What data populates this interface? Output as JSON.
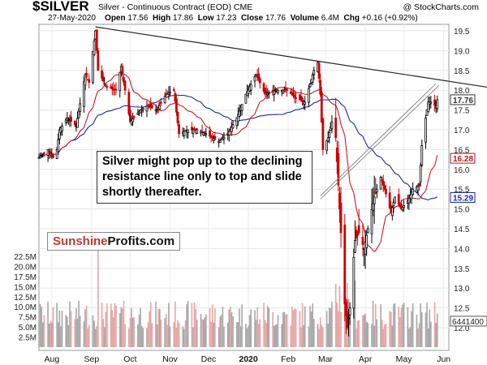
{
  "header": {
    "symbol": "$SILVER",
    "contract": "Silver - Continuous Contract (EOD) CME",
    "copyright": "@ StockCharts.com",
    "date": "27-May-2020",
    "open_label": "Open",
    "open": "17.56",
    "high_label": "High",
    "high": "17.86",
    "low_label": "Low",
    "low": "17.23",
    "close_label": "Close",
    "close": "17.76",
    "volume_label": "Volume",
    "volume": "6.4M",
    "chg_label": "Chg",
    "chg": "+0.16 (+0.92%)"
  },
  "annotation": "Silver might pop up to the declining resistance line only to top and slide shortly thereafter.",
  "watermark": {
    "part1": "Sunshine",
    "part2": "Profits.com"
  },
  "colors": {
    "up": "#000000",
    "down": "#cc0000",
    "ma_red": "#cc1a2a",
    "ma_blue": "#1a2aa8",
    "vol_up": "#a9a9a9",
    "vol_down": "#e8a6a6",
    "line": "#222222"
  },
  "chart_data": {
    "type": "candlestick",
    "price_axis": {
      "ticks": [
        12.0,
        12.5,
        13.0,
        13.5,
        14.0,
        14.5,
        15.0,
        15.5,
        16.0,
        16.5,
        17.0,
        17.5,
        18.0,
        18.5,
        19.0,
        19.5
      ],
      "tick_labels": [
        "12.0",
        "12.5",
        "13.0",
        "13.5",
        "14.0",
        "14.5",
        "15.0",
        "15.5",
        "16.0",
        "16.5",
        "17.0",
        "17.5",
        "18.0",
        "18.5",
        "19.0",
        "19.5"
      ]
    },
    "volume_axis": {
      "ticks": [
        2500000,
        5000000,
        7500000,
        10000000,
        12500000,
        15000000,
        17500000,
        20000000,
        22500000
      ],
      "tick_labels": [
        "2.5M",
        "5.0M",
        "7.5M",
        "10.0M",
        "12.5M",
        "15.0M",
        "17.5M",
        "20.0M",
        "22.5M"
      ],
      "last_volume_label": "6441400"
    },
    "price_badges": [
      {
        "label": "17.76",
        "value": 17.76,
        "style": "dark"
      },
      {
        "label": "16.28",
        "value": 16.28,
        "style": "red"
      },
      {
        "label": "15.29",
        "value": 15.29,
        "style": "blue"
      }
    ],
    "x_labels": [
      "Aug",
      "Sep",
      "Oct",
      "Nov",
      "Dec",
      "2020",
      "Feb",
      "Mar",
      "Apr",
      "May",
      "Jun"
    ],
    "x_label_dates": [
      "2019-08-01",
      "2019-09-01",
      "2019-10-01",
      "2019-11-01",
      "2019-12-01",
      "2020-01-01",
      "2020-02-01",
      "2020-03-01",
      "2020-04-01",
      "2020-05-01",
      "2020-06-01"
    ],
    "anchors": [
      [
        "2019-07-22",
        16.3
      ],
      [
        "2019-07-29",
        16.5
      ],
      [
        "2019-08-02",
        16.3
      ],
      [
        "2019-08-05",
        16.5
      ],
      [
        "2019-08-07",
        17.0
      ],
      [
        "2019-08-13",
        17.3
      ],
      [
        "2019-08-20",
        17.1
      ],
      [
        "2019-08-27",
        18.4
      ],
      [
        "2019-08-30",
        18.2
      ],
      [
        "2019-09-04",
        19.5
      ],
      [
        "2019-09-06",
        18.5
      ],
      [
        "2019-09-12",
        18.1
      ],
      [
        "2019-09-20",
        18.0
      ],
      [
        "2019-09-24",
        18.6
      ],
      [
        "2019-10-01",
        17.2
      ],
      [
        "2019-10-09",
        17.5
      ],
      [
        "2019-10-14",
        17.6
      ],
      [
        "2019-10-22",
        17.5
      ],
      [
        "2019-10-29",
        17.9
      ],
      [
        "2019-11-04",
        18.0
      ],
      [
        "2019-11-08",
        16.9
      ],
      [
        "2019-11-15",
        17.0
      ],
      [
        "2019-11-22",
        17.0
      ],
      [
        "2019-11-29",
        16.9
      ],
      [
        "2019-12-09",
        16.7
      ],
      [
        "2019-12-16",
        16.9
      ],
      [
        "2019-12-23",
        17.3
      ],
      [
        "2019-12-30",
        17.9
      ],
      [
        "2020-01-07",
        18.4
      ],
      [
        "2020-01-14",
        17.9
      ],
      [
        "2020-01-22",
        18.0
      ],
      [
        "2020-01-31",
        18.0
      ],
      [
        "2020-02-07",
        17.8
      ],
      [
        "2020-02-14",
        17.7
      ],
      [
        "2020-02-21",
        18.5
      ],
      [
        "2020-02-24",
        18.7
      ],
      [
        "2020-02-26",
        17.9
      ],
      [
        "2020-02-28",
        16.5
      ],
      [
        "2020-03-03",
        16.8
      ],
      [
        "2020-03-06",
        17.2
      ],
      [
        "2020-03-09",
        16.8
      ],
      [
        "2020-03-12",
        15.0
      ],
      [
        "2020-03-16",
        12.6
      ],
      [
        "2020-03-18",
        12.0
      ],
      [
        "2020-03-20",
        12.5
      ],
      [
        "2020-03-24",
        14.2
      ],
      [
        "2020-03-27",
        14.4
      ],
      [
        "2020-03-31",
        14.0
      ],
      [
        "2020-04-03",
        14.5
      ],
      [
        "2020-04-08",
        15.3
      ],
      [
        "2020-04-13",
        15.8
      ],
      [
        "2020-04-16",
        15.5
      ],
      [
        "2020-04-21",
        14.9
      ],
      [
        "2020-04-24",
        15.3
      ],
      [
        "2020-04-29",
        15.0
      ],
      [
        "2020-05-04",
        15.2
      ],
      [
        "2020-05-08",
        15.5
      ],
      [
        "2020-05-13",
        15.6
      ],
      [
        "2020-05-15",
        16.6
      ],
      [
        "2020-05-18",
        17.3
      ],
      [
        "2020-05-20",
        17.7
      ],
      [
        "2020-05-22",
        17.7
      ],
      [
        "2020-05-26",
        17.6
      ],
      [
        "2020-05-27",
        17.76
      ]
    ],
    "resistance_line": [
      [
        "2019-09-04",
        19.6
      ],
      [
        "2020-06-10",
        18.2
      ]
    ],
    "support_line": [
      [
        "2020-03-16",
        15.7
      ],
      [
        "2020-05-22",
        18.1
      ]
    ],
    "overlays": [
      {
        "name": "MA-50",
        "color": "red",
        "last": 16.28
      },
      {
        "name": "MA-200",
        "color": "blue",
        "last": 15.29
      }
    ]
  }
}
